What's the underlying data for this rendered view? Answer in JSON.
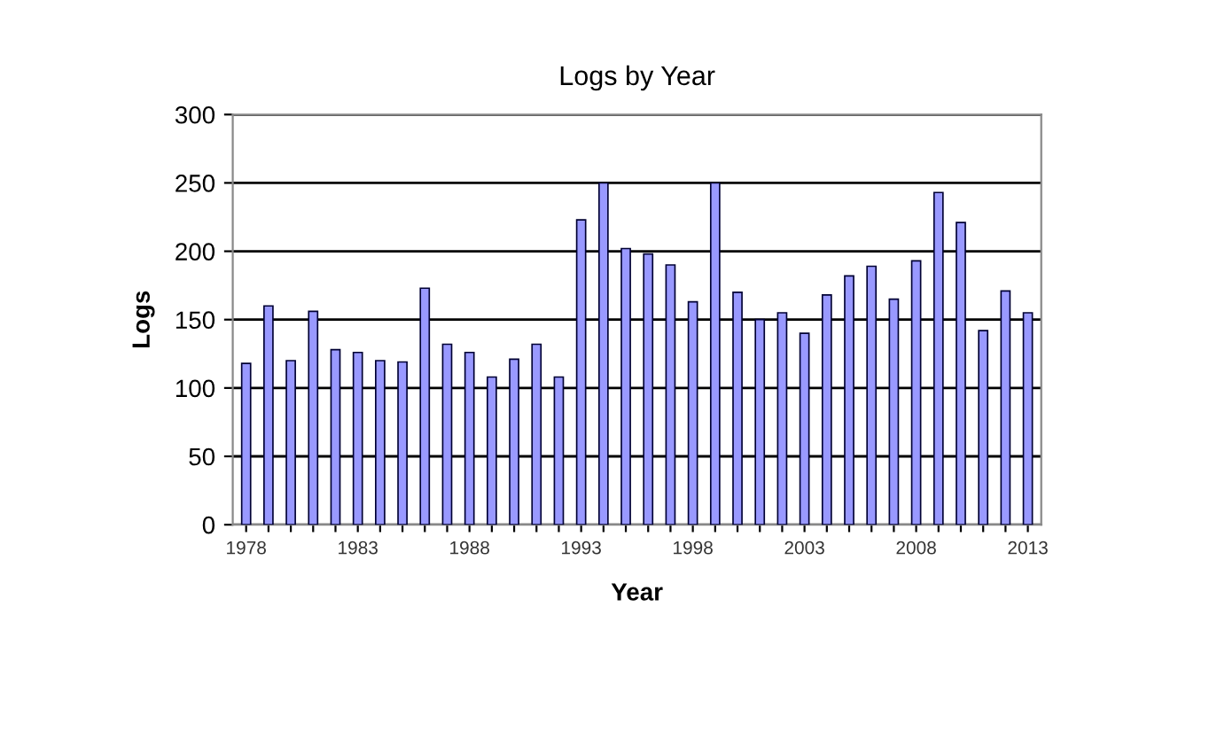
{
  "chart_data": {
    "type": "bar",
    "title": "Logs by Year",
    "xlabel": "Year",
    "ylabel": "Logs",
    "categories": [
      "1978",
      null,
      null,
      null,
      null,
      "1983",
      null,
      null,
      null,
      null,
      "1988",
      null,
      null,
      null,
      null,
      "1993",
      null,
      null,
      null,
      null,
      "1998",
      null,
      null,
      null,
      null,
      "2003",
      null,
      null,
      null,
      null,
      "2008",
      null,
      null,
      null,
      null,
      "2013"
    ],
    "series": [
      {
        "color": "#9999ff",
        "values": [
          118,
          160,
          120,
          156,
          128,
          126,
          120,
          119,
          173,
          132,
          126,
          108,
          121,
          132,
          108,
          223,
          250,
          202,
          198,
          190,
          163,
          250,
          170,
          150,
          155,
          140,
          168,
          182,
          189,
          165,
          193,
          243,
          221,
          142,
          171,
          155
        ]
      }
    ],
    "ylim": [
      0,
      300
    ],
    "yticks": [
      0,
      50,
      100,
      150,
      200,
      250,
      300
    ],
    "grid": "y",
    "legend": false
  }
}
